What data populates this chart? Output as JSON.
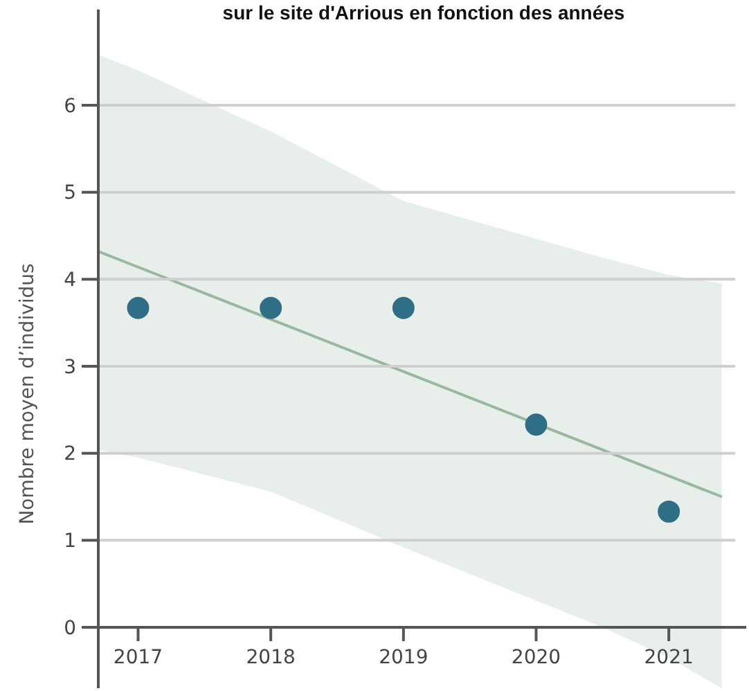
{
  "chart_data": {
    "type": "scatter",
    "title": "sur le site d'Arrious en fonction des années",
    "ylabel": "Nombre moyen d’individus",
    "series": [
      {
        "color": "#2f6e84",
        "marker": "circle",
        "x": [
          2017,
          2018,
          2019,
          2020,
          2021
        ],
        "values": [
          3.67,
          3.67,
          3.67,
          2.33,
          1.33
        ]
      },
      {
        "type": "line",
        "marker": "none",
        "color": "#98b8a0",
        "x": [
          2016.7,
          2017,
          2018,
          2019,
          2020.5,
          2021,
          2021.4
        ],
        "values": [
          4.32,
          4.14,
          3.54,
          2.94,
          2.04,
          1.74,
          1.5
        ],
        "lower": [
          2.04,
          1.95,
          1.56,
          0.92,
          0,
          -0.35,
          -0.7
        ],
        "upper": [
          6.58,
          6.4,
          5.7,
          4.9,
          4.25,
          4.05,
          3.95
        ]
      }
    ],
    "xlim": [
      2016.7,
      2021.5
    ],
    "xticks": [
      2017,
      2018,
      2019,
      2020,
      2021
    ],
    "ylim": [
      -0.7,
      7.1
    ],
    "yticks": [
      0,
      1,
      2,
      3,
      4,
      5,
      6
    ],
    "grid": "y",
    "line_style": "solid"
  }
}
